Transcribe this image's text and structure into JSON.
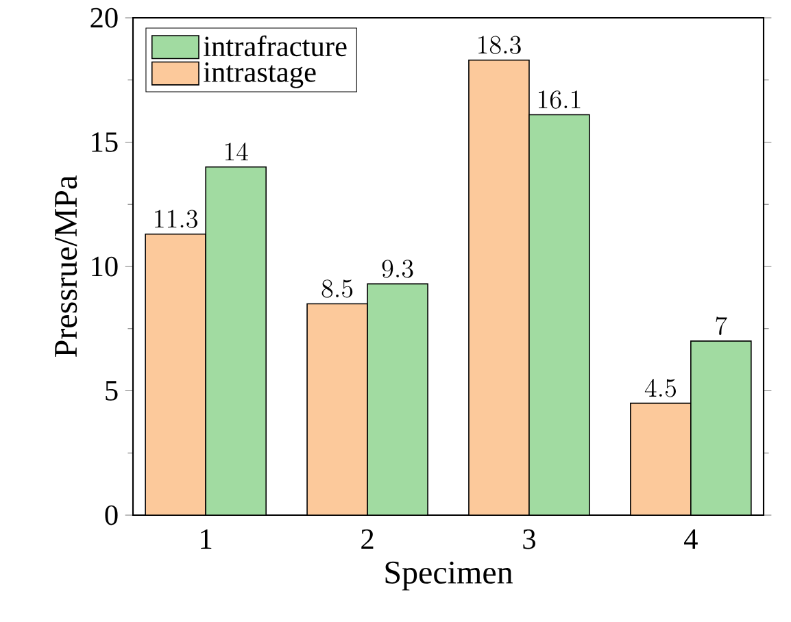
{
  "chart_data": {
    "type": "bar",
    "xlabel": "Specimen",
    "ylabel": "Pressrue/MPa",
    "categories": [
      "1",
      "2",
      "3",
      "4"
    ],
    "series": [
      {
        "name": "intrastage",
        "color": "#fcc99b",
        "values": [
          11.3,
          8.5,
          18.3,
          4.5
        ]
      },
      {
        "name": "intrafracture",
        "color": "#a1dba1",
        "values": [
          14,
          9.3,
          16.1,
          7
        ]
      }
    ],
    "ylim": [
      0,
      20
    ],
    "yticks": [
      0,
      5,
      10,
      15,
      20
    ],
    "data_labels": true,
    "legend": "top left",
    "grid": false
  }
}
